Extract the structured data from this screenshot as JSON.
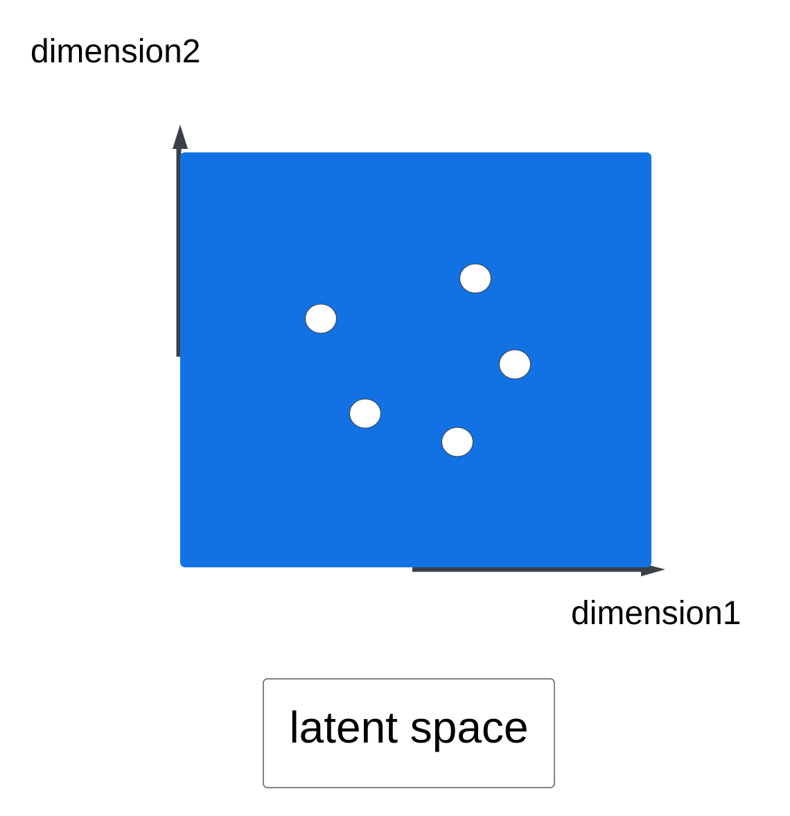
{
  "axes": {
    "y_label": "dimension2",
    "x_label": "dimension1"
  },
  "caption": {
    "label": "latent space"
  },
  "points": [
    {
      "name": "point-1"
    },
    {
      "name": "point-2"
    },
    {
      "name": "point-3"
    },
    {
      "name": "point-4"
    },
    {
      "name": "point-5"
    }
  ],
  "colors": {
    "space_fill": "#1272E3",
    "axis": "#3A3F48",
    "point_fill": "#FFFFFF",
    "point_stroke": "#3A3F48",
    "caption_border": "#5A5A5A",
    "text": "#000000"
  }
}
